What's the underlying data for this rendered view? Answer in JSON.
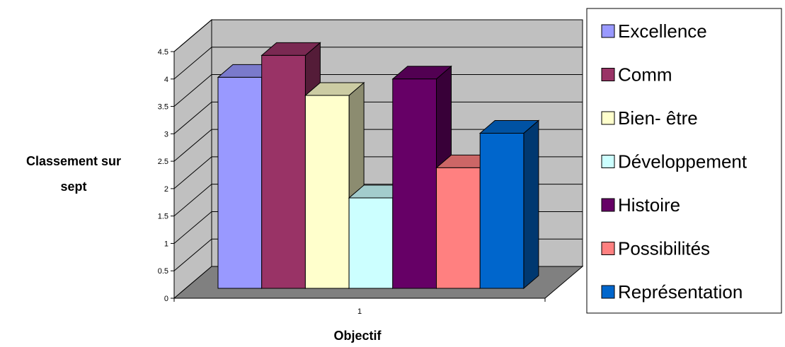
{
  "chart_data": {
    "type": "bar",
    "style": "3d-clustered-column",
    "categories": [
      "1"
    ],
    "series": [
      {
        "name": "Excellence",
        "values": [
          3.85
        ],
        "color": "#9999ff"
      },
      {
        "name": "Comm",
        "values": [
          4.25
        ],
        "color": "#993366"
      },
      {
        "name": "Bien-  être",
        "values": [
          3.52
        ],
        "color": "#ffffcc"
      },
      {
        "name": "Développement",
        "values": [
          1.65
        ],
        "color": "#ccffff"
      },
      {
        "name": "Histoire",
        "values": [
          3.82
        ],
        "color": "#660066"
      },
      {
        "name": "Possibilités",
        "values": [
          2.2
        ],
        "color": "#ff8080"
      },
      {
        "name": "Représentation",
        "values": [
          2.83
        ],
        "color": "#0066cc"
      }
    ],
    "yticks": [
      "0",
      "0.5",
      "1",
      "1.5",
      "2",
      "2.5",
      "3",
      "3.5",
      "4",
      "4.5"
    ],
    "ylim": [
      0,
      4.5
    ],
    "ylabel_lines": [
      "Classement sur",
      "sept"
    ],
    "xlabel": "Objectif",
    "grid": true,
    "legend_position": "right",
    "wall_color": "#c0c0c0",
    "floor_color": "#808080"
  }
}
